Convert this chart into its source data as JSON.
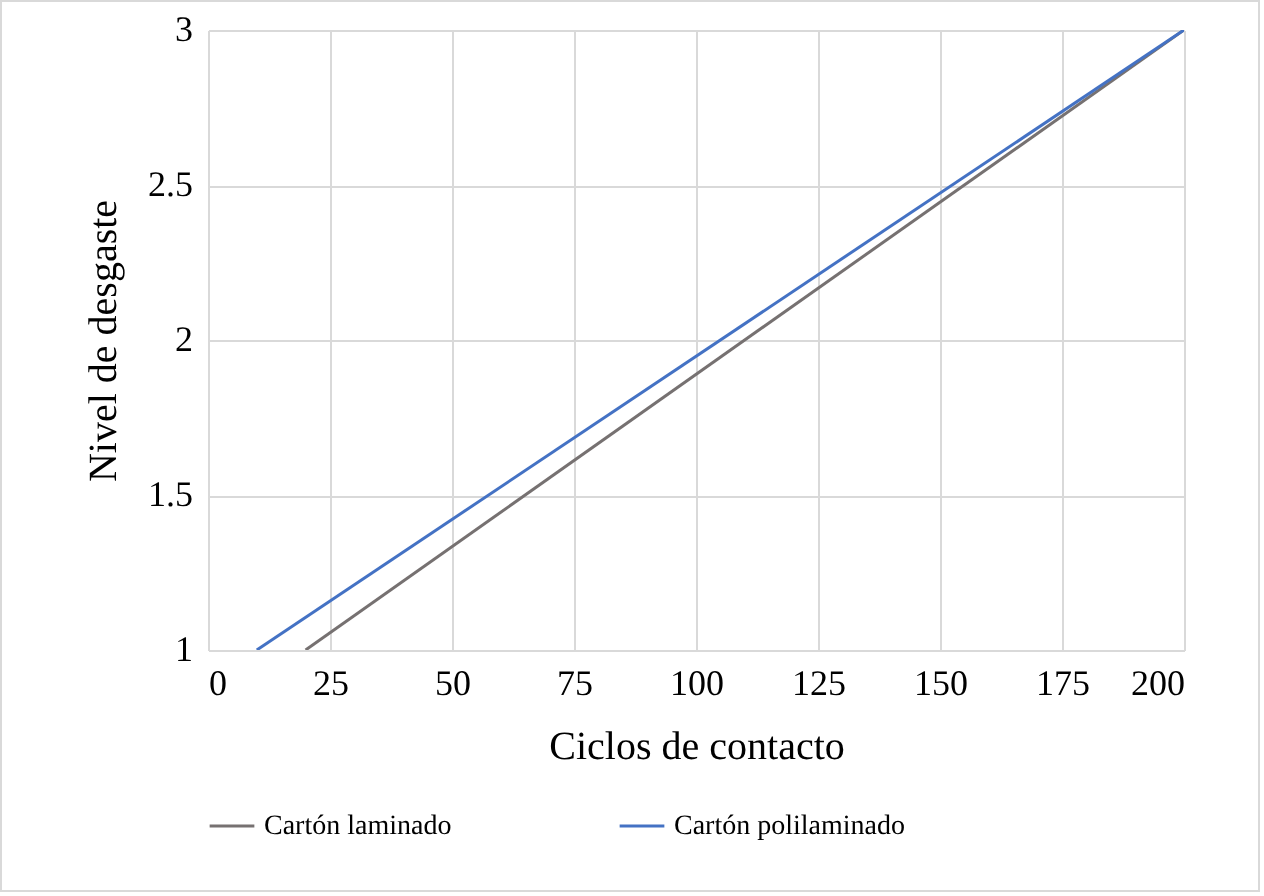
{
  "chart_data": {
    "type": "line",
    "xlabel": "Ciclos de contacto",
    "ylabel": "Nivel de desgaste",
    "series": [
      {
        "name": "Cartón laminado",
        "color": "#767171",
        "x": [
          20,
          200
        ],
        "values": [
          1,
          3
        ]
      },
      {
        "name": "Cartón polilaminado",
        "color": "#4472c4",
        "x": [
          10,
          200
        ],
        "values": [
          1,
          3
        ]
      }
    ],
    "xlim": [
      0,
      200
    ],
    "xticks": [
      0,
      25,
      50,
      75,
      100,
      125,
      150,
      175,
      200
    ],
    "ylim": [
      1,
      3
    ],
    "yticks": [
      1,
      1.5,
      2,
      2.5,
      3
    ],
    "grid": true,
    "legend": "bottom"
  }
}
